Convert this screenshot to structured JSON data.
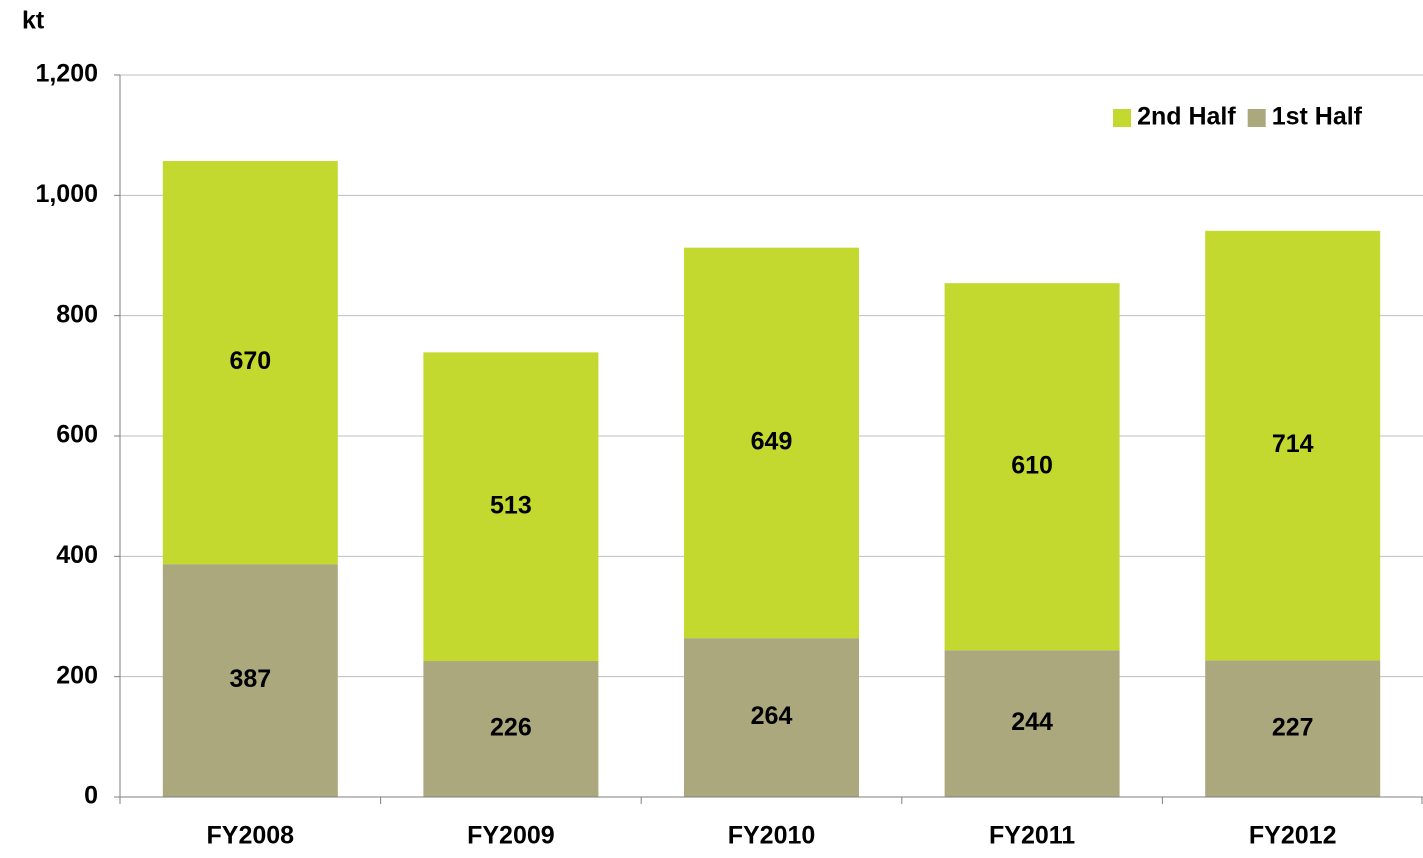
{
  "chart_data": {
    "type": "stacked_bar",
    "y_axis_label": "kt",
    "categories": [
      "FY2008",
      "FY2009",
      "FY2010",
      "FY2011",
      "FY2012"
    ],
    "series": [
      {
        "name": "1st Half",
        "color": "#aca87e",
        "values": [
          387,
          226,
          264,
          244,
          227
        ]
      },
      {
        "name": "2nd Half",
        "color": "#c3d930",
        "values": [
          670,
          513,
          649,
          610,
          714
        ]
      }
    ],
    "ylim": [
      0,
      1200
    ],
    "yticks": [
      0,
      200,
      400,
      600,
      800,
      {
        "value": 1000,
        "label": "1,000"
      },
      {
        "value": 1200,
        "label": "1,200"
      }
    ],
    "grid": true,
    "legend": "top-right"
  }
}
